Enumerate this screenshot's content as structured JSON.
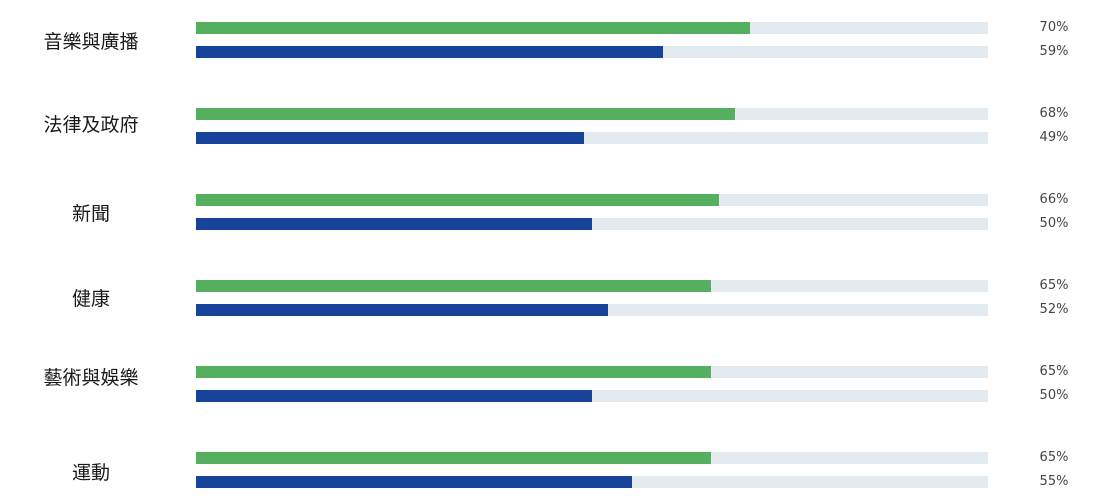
{
  "colors": {
    "series_a": "#54b05f",
    "series_b": "#17449a",
    "track": "#e3ebf1"
  },
  "chart_data": {
    "type": "bar",
    "orientation": "horizontal",
    "value_unit": "%",
    "xlim": [
      0,
      100
    ],
    "categories": [
      "音樂與廣播",
      "法律及政府",
      "新聞",
      "健康",
      "藝術與娛樂",
      "運動"
    ],
    "series": [
      {
        "color": "#54b05f",
        "values": [
          70,
          68,
          66,
          65,
          65,
          65
        ],
        "labels": [
          "70%",
          "68%",
          "66%",
          "65%",
          "65%",
          "65%"
        ]
      },
      {
        "color": "#17449a",
        "values": [
          59,
          49,
          50,
          52,
          50,
          55
        ],
        "labels": [
          "59%",
          "49%",
          "50%",
          "52%",
          "50%",
          "55%"
        ]
      }
    ],
    "grid": false,
    "legend": "none"
  }
}
